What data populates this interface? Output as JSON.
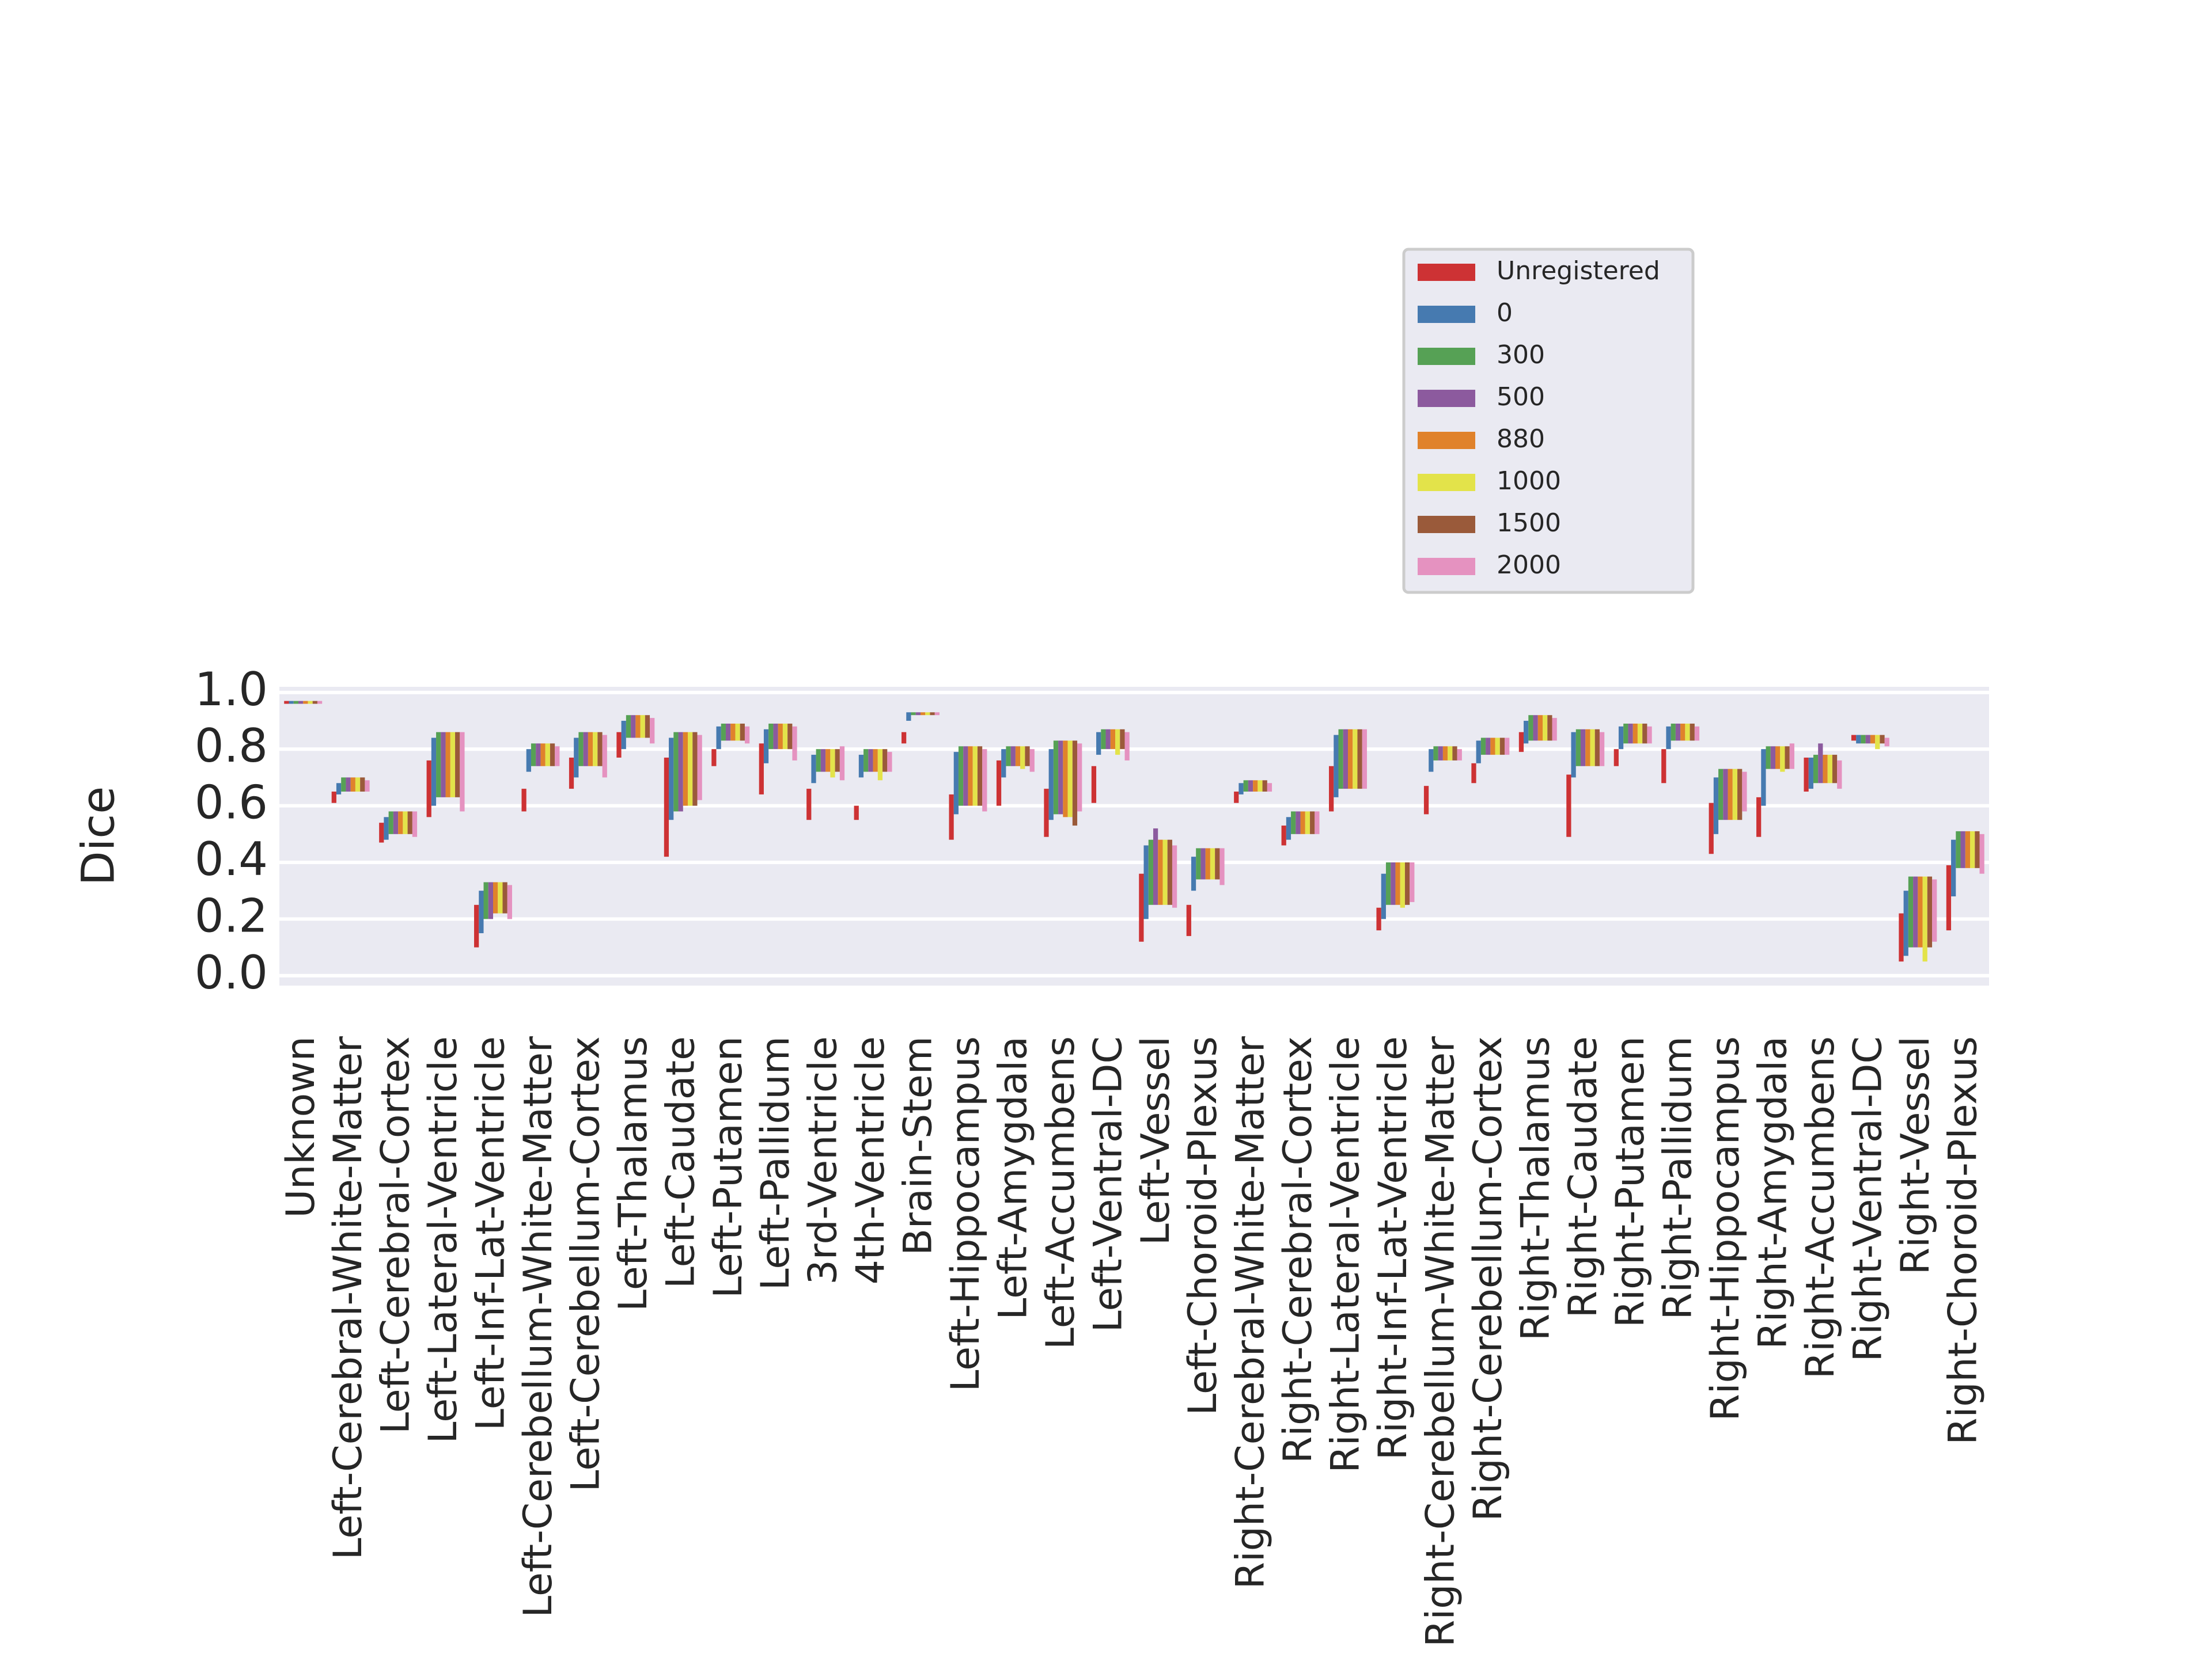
{
  "chart_data": {
    "type": "box",
    "y_label": "Dice",
    "categories": [
      "Unknown",
      "Left-Cerebral-White-Matter",
      "Left-Cerebral-Cortex",
      "Left-Lateral-Ventricle",
      "Left-Inf-Lat-Ventricle",
      "Left-Cerebellum-White-Matter",
      "Left-Cerebellum-Cortex",
      "Left-Thalamus",
      "Left-Caudate",
      "Left-Putamen",
      "Left-Pallidum",
      "3rd-Ventricle",
      "4th-Ventricle",
      "Brain-Stem",
      "Left-Hippocampus",
      "Left-Amygdala",
      "Left-Accumbens",
      "Left-Ventral-DC",
      "Left-Vessel",
      "Left-Choroid-Plexus",
      "Right-Cerebral-White-Matter",
      "Right-Cerebral-Cortex",
      "Right-Lateral-Ventricle",
      "Right-Inf-Lat-Ventricle",
      "Right-Cerebellum-White-Matter",
      "Right-Cerebellum-Cortex",
      "Right-Thalamus",
      "Right-Caudate",
      "Right-Putamen",
      "Right-Pallidum",
      "Right-Hippocampus",
      "Right-Amygdala",
      "Right-Accumbens",
      "Right-Ventral-DC",
      "Right-Vessel",
      "Right-Choroid-Plexus"
    ],
    "series": [
      {
        "name": "Unregistered",
        "color": "#cd3234",
        "q1": [
          0.96,
          0.61,
          0.47,
          0.56,
          0.1,
          0.58,
          0.66,
          0.77,
          0.42,
          0.74,
          0.64,
          0.55,
          0.55,
          0.82,
          0.48,
          0.6,
          0.49,
          0.61,
          0.12,
          0.14,
          0.61,
          0.46,
          0.58,
          0.16,
          0.57,
          0.68,
          0.79,
          0.49,
          0.74,
          0.68,
          0.43,
          0.49,
          0.65,
          0.83,
          0.05,
          0.16
        ],
        "q3": [
          0.97,
          0.65,
          0.54,
          0.76,
          0.25,
          0.66,
          0.77,
          0.86,
          0.77,
          0.8,
          0.82,
          0.66,
          0.6,
          0.86,
          0.64,
          0.76,
          0.66,
          0.74,
          0.36,
          0.25,
          0.65,
          0.53,
          0.74,
          0.24,
          0.67,
          0.75,
          0.86,
          0.71,
          0.8,
          0.8,
          0.61,
          0.63,
          0.77,
          0.85,
          0.22,
          0.39
        ]
      },
      {
        "name": "0",
        "color": "#467ab0",
        "q1": [
          0.96,
          0.64,
          0.48,
          0.6,
          0.15,
          0.72,
          0.7,
          0.8,
          0.55,
          0.8,
          0.75,
          0.68,
          0.7,
          0.9,
          0.57,
          0.7,
          0.55,
          0.78,
          0.2,
          0.3,
          0.64,
          0.48,
          0.63,
          0.2,
          0.72,
          0.75,
          0.82,
          0.7,
          0.8,
          0.8,
          0.5,
          0.6,
          0.66,
          0.82,
          0.07,
          0.28
        ],
        "q3": [
          0.97,
          0.68,
          0.56,
          0.84,
          0.3,
          0.8,
          0.84,
          0.9,
          0.84,
          0.88,
          0.87,
          0.78,
          0.78,
          0.93,
          0.79,
          0.8,
          0.8,
          0.86,
          0.46,
          0.42,
          0.68,
          0.56,
          0.85,
          0.36,
          0.8,
          0.83,
          0.9,
          0.86,
          0.88,
          0.88,
          0.7,
          0.8,
          0.77,
          0.85,
          0.3,
          0.48
        ]
      },
      {
        "name": "300",
        "color": "#56a155",
        "q1": [
          0.96,
          0.65,
          0.5,
          0.63,
          0.2,
          0.74,
          0.74,
          0.84,
          0.58,
          0.83,
          0.8,
          0.72,
          0.72,
          0.92,
          0.6,
          0.74,
          0.57,
          0.8,
          0.25,
          0.34,
          0.65,
          0.5,
          0.66,
          0.25,
          0.76,
          0.78,
          0.83,
          0.74,
          0.82,
          0.83,
          0.55,
          0.73,
          0.68,
          0.82,
          0.1,
          0.38
        ],
        "q3": [
          0.97,
          0.7,
          0.58,
          0.86,
          0.33,
          0.82,
          0.86,
          0.92,
          0.86,
          0.89,
          0.89,
          0.8,
          0.8,
          0.93,
          0.81,
          0.81,
          0.83,
          0.87,
          0.48,
          0.45,
          0.69,
          0.58,
          0.87,
          0.4,
          0.81,
          0.84,
          0.92,
          0.87,
          0.89,
          0.89,
          0.73,
          0.81,
          0.78,
          0.85,
          0.35,
          0.51
        ]
      },
      {
        "name": "500",
        "color": "#8c5a9e",
        "q1": [
          0.96,
          0.65,
          0.5,
          0.63,
          0.2,
          0.74,
          0.74,
          0.84,
          0.58,
          0.83,
          0.8,
          0.72,
          0.72,
          0.92,
          0.6,
          0.74,
          0.57,
          0.8,
          0.25,
          0.34,
          0.65,
          0.5,
          0.66,
          0.25,
          0.76,
          0.78,
          0.83,
          0.74,
          0.82,
          0.83,
          0.55,
          0.73,
          0.68,
          0.82,
          0.1,
          0.38
        ],
        "q3": [
          0.97,
          0.7,
          0.58,
          0.86,
          0.33,
          0.82,
          0.86,
          0.92,
          0.86,
          0.89,
          0.89,
          0.8,
          0.8,
          0.93,
          0.81,
          0.81,
          0.83,
          0.87,
          0.52,
          0.45,
          0.69,
          0.58,
          0.87,
          0.4,
          0.81,
          0.84,
          0.92,
          0.87,
          0.89,
          0.89,
          0.73,
          0.81,
          0.82,
          0.85,
          0.35,
          0.51
        ]
      },
      {
        "name": "880",
        "color": "#e0822b",
        "q1": [
          0.96,
          0.65,
          0.5,
          0.63,
          0.22,
          0.74,
          0.74,
          0.84,
          0.6,
          0.83,
          0.8,
          0.72,
          0.72,
          0.92,
          0.6,
          0.74,
          0.56,
          0.8,
          0.25,
          0.34,
          0.65,
          0.5,
          0.66,
          0.25,
          0.76,
          0.78,
          0.83,
          0.74,
          0.82,
          0.83,
          0.55,
          0.73,
          0.68,
          0.82,
          0.1,
          0.38
        ],
        "q3": [
          0.97,
          0.7,
          0.58,
          0.86,
          0.33,
          0.82,
          0.86,
          0.92,
          0.86,
          0.89,
          0.89,
          0.8,
          0.8,
          0.93,
          0.81,
          0.81,
          0.83,
          0.87,
          0.48,
          0.45,
          0.69,
          0.58,
          0.87,
          0.4,
          0.81,
          0.84,
          0.92,
          0.87,
          0.89,
          0.89,
          0.73,
          0.81,
          0.78,
          0.85,
          0.35,
          0.51
        ]
      },
      {
        "name": "1000",
        "color": "#e3e34a",
        "q1": [
          0.96,
          0.65,
          0.5,
          0.63,
          0.22,
          0.74,
          0.74,
          0.84,
          0.6,
          0.83,
          0.8,
          0.7,
          0.69,
          0.92,
          0.6,
          0.73,
          0.56,
          0.78,
          0.25,
          0.34,
          0.65,
          0.5,
          0.66,
          0.24,
          0.76,
          0.78,
          0.83,
          0.74,
          0.82,
          0.83,
          0.55,
          0.72,
          0.68,
          0.8,
          0.05,
          0.38
        ],
        "q3": [
          0.97,
          0.7,
          0.58,
          0.86,
          0.33,
          0.82,
          0.86,
          0.92,
          0.86,
          0.89,
          0.89,
          0.8,
          0.8,
          0.93,
          0.81,
          0.81,
          0.83,
          0.87,
          0.48,
          0.45,
          0.69,
          0.58,
          0.87,
          0.4,
          0.81,
          0.84,
          0.92,
          0.87,
          0.89,
          0.89,
          0.73,
          0.81,
          0.78,
          0.85,
          0.35,
          0.51
        ]
      },
      {
        "name": "1500",
        "color": "#9a5a3a",
        "q1": [
          0.96,
          0.65,
          0.5,
          0.63,
          0.22,
          0.74,
          0.74,
          0.84,
          0.6,
          0.83,
          0.8,
          0.72,
          0.72,
          0.92,
          0.6,
          0.74,
          0.53,
          0.8,
          0.25,
          0.34,
          0.65,
          0.5,
          0.66,
          0.25,
          0.76,
          0.78,
          0.83,
          0.74,
          0.82,
          0.83,
          0.55,
          0.73,
          0.68,
          0.82,
          0.1,
          0.38
        ],
        "q3": [
          0.97,
          0.7,
          0.58,
          0.86,
          0.33,
          0.82,
          0.86,
          0.92,
          0.86,
          0.89,
          0.89,
          0.8,
          0.8,
          0.93,
          0.81,
          0.81,
          0.83,
          0.87,
          0.48,
          0.45,
          0.69,
          0.58,
          0.87,
          0.4,
          0.81,
          0.84,
          0.92,
          0.87,
          0.89,
          0.89,
          0.73,
          0.81,
          0.78,
          0.85,
          0.35,
          0.51
        ]
      },
      {
        "name": "2000",
        "color": "#e592c0",
        "q1": [
          0.96,
          0.65,
          0.49,
          0.58,
          0.2,
          0.74,
          0.7,
          0.82,
          0.62,
          0.82,
          0.76,
          0.69,
          0.72,
          0.92,
          0.58,
          0.72,
          0.58,
          0.76,
          0.24,
          0.32,
          0.65,
          0.5,
          0.66,
          0.26,
          0.76,
          0.78,
          0.83,
          0.74,
          0.82,
          0.83,
          0.58,
          0.73,
          0.66,
          0.81,
          0.12,
          0.36
        ],
        "q3": [
          0.97,
          0.69,
          0.58,
          0.86,
          0.32,
          0.81,
          0.85,
          0.91,
          0.85,
          0.88,
          0.88,
          0.81,
          0.79,
          0.93,
          0.8,
          0.8,
          0.82,
          0.86,
          0.46,
          0.45,
          0.68,
          0.58,
          0.87,
          0.4,
          0.8,
          0.84,
          0.91,
          0.86,
          0.88,
          0.88,
          0.72,
          0.82,
          0.76,
          0.84,
          0.34,
          0.5
        ]
      }
    ],
    "ylim": [
      -0.035,
      1.02
    ],
    "yticks": [
      {
        "value": 0,
        "label": "0.0"
      },
      0.2,
      0.4,
      0.6,
      0.8,
      {
        "value": 1,
        "label": "1.0"
      }
    ],
    "grid": true,
    "legend": "upper right"
  }
}
